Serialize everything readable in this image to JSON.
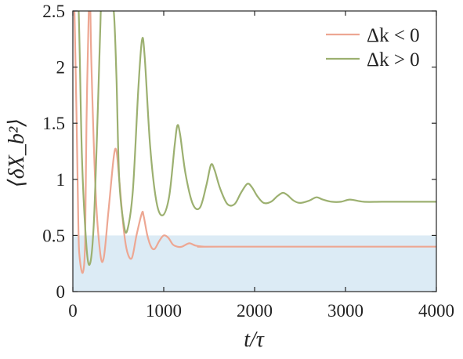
{
  "chart_data": {
    "type": "line",
    "xlabel": "t/τ",
    "ylabel": "⟨δX_b²⟩",
    "xlim": [
      0,
      4000
    ],
    "ylim": [
      0,
      2.5
    ],
    "xticks": [
      0,
      1000,
      2000,
      3000,
      4000
    ],
    "yticks": [
      0,
      0.5,
      1,
      1.5,
      2,
      2.5
    ],
    "grid": false,
    "legend_position": "top-right",
    "shaded_region": {
      "y_from": 0,
      "y_to": 0.5,
      "color": "#dcebf5"
    },
    "series": [
      {
        "name": "Δk < 0",
        "color": "#eda793",
        "points": [
          [
            0,
            3.2
          ],
          [
            40,
            1.6
          ],
          [
            60,
            0.6
          ],
          [
            75,
            0.3
          ],
          [
            110,
            0.17
          ],
          [
            135,
            0.45
          ],
          [
            150,
            1.5
          ],
          [
            175,
            2.5
          ],
          [
            190,
            2.6
          ],
          [
            205,
            2.0
          ],
          [
            250,
            0.9
          ],
          [
            300,
            0.35
          ],
          [
            340,
            0.3
          ],
          [
            390,
            0.7
          ],
          [
            450,
            1.2
          ],
          [
            480,
            1.25
          ],
          [
            510,
            1.0
          ],
          [
            560,
            0.55
          ],
          [
            600,
            0.35
          ],
          [
            650,
            0.3
          ],
          [
            700,
            0.5
          ],
          [
            760,
            0.7
          ],
          [
            780,
            0.67
          ],
          [
            820,
            0.5
          ],
          [
            860,
            0.4
          ],
          [
            900,
            0.38
          ],
          [
            950,
            0.45
          ],
          [
            1000,
            0.5
          ],
          [
            1050,
            0.48
          ],
          [
            1100,
            0.42
          ],
          [
            1150,
            0.4
          ],
          [
            1200,
            0.4
          ],
          [
            1280,
            0.43
          ],
          [
            1350,
            0.41
          ],
          [
            1450,
            0.4
          ],
          [
            1600,
            0.4
          ],
          [
            4000,
            0.4
          ]
        ]
      },
      {
        "name": "Δk > 0",
        "color": "#9cb070",
        "points": [
          [
            0,
            3.4
          ],
          [
            60,
            2.6
          ],
          [
            100,
            1.2
          ],
          [
            150,
            0.4
          ],
          [
            190,
            0.25
          ],
          [
            230,
            0.6
          ],
          [
            270,
            1.5
          ],
          [
            300,
            2.3
          ],
          [
            320,
            2.6
          ],
          [
            400,
            2.6
          ],
          [
            450,
            2.5
          ],
          [
            480,
            1.9
          ],
          [
            510,
            1.0
          ],
          [
            560,
            0.6
          ],
          [
            600,
            0.55
          ],
          [
            660,
            0.9
          ],
          [
            720,
            1.8
          ],
          [
            760,
            2.24
          ],
          [
            790,
            2.1
          ],
          [
            850,
            1.3
          ],
          [
            920,
            0.8
          ],
          [
            990,
            0.68
          ],
          [
            1060,
            0.85
          ],
          [
            1120,
            1.3
          ],
          [
            1150,
            1.48
          ],
          [
            1180,
            1.4
          ],
          [
            1240,
            1.05
          ],
          [
            1320,
            0.78
          ],
          [
            1400,
            0.75
          ],
          [
            1470,
            0.95
          ],
          [
            1520,
            1.13
          ],
          [
            1560,
            1.08
          ],
          [
            1620,
            0.92
          ],
          [
            1700,
            0.78
          ],
          [
            1780,
            0.78
          ],
          [
            1850,
            0.88
          ],
          [
            1920,
            0.96
          ],
          [
            1970,
            0.93
          ],
          [
            2030,
            0.85
          ],
          [
            2100,
            0.79
          ],
          [
            2180,
            0.8
          ],
          [
            2250,
            0.85
          ],
          [
            2310,
            0.88
          ],
          [
            2360,
            0.86
          ],
          [
            2430,
            0.81
          ],
          [
            2500,
            0.79
          ],
          [
            2600,
            0.81
          ],
          [
            2680,
            0.84
          ],
          [
            2750,
            0.82
          ],
          [
            2850,
            0.8
          ],
          [
            2950,
            0.8
          ],
          [
            3050,
            0.82
          ],
          [
            3200,
            0.8
          ],
          [
            3400,
            0.8
          ],
          [
            3700,
            0.8
          ],
          [
            4000,
            0.8
          ]
        ]
      }
    ]
  }
}
